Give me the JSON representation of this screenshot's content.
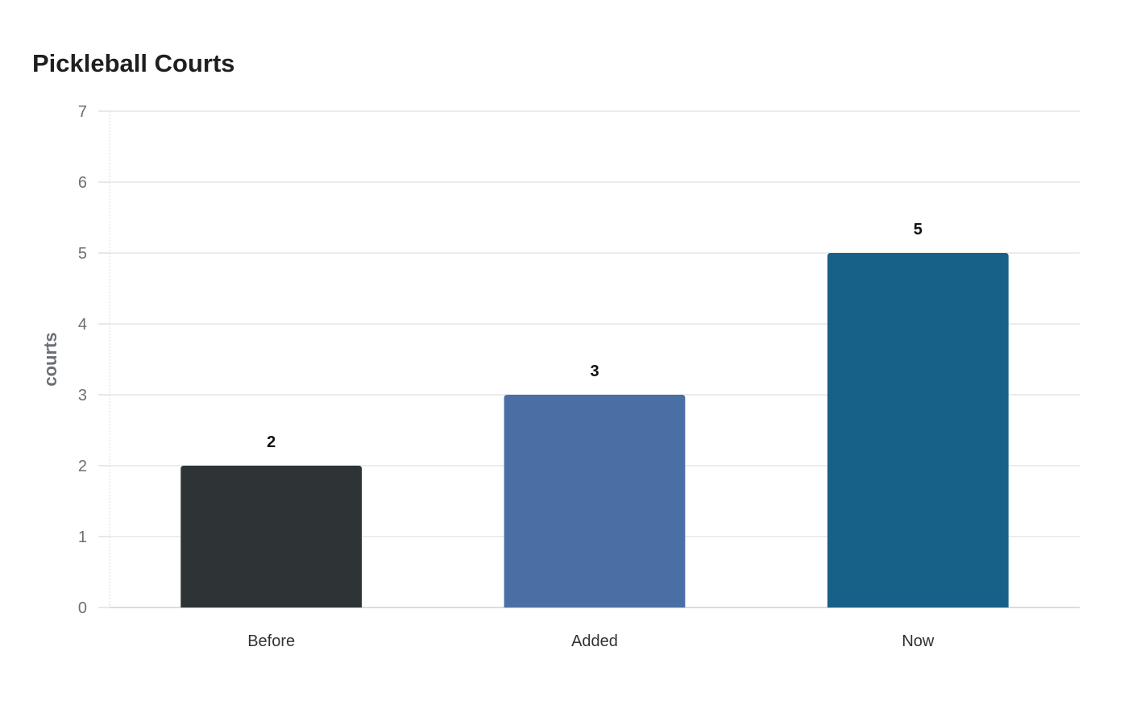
{
  "chart_data": {
    "type": "bar",
    "title": "Pickleball Courts",
    "xlabel": "",
    "ylabel": "courts",
    "categories": [
      "Before",
      "Added",
      "Now"
    ],
    "values": [
      2,
      3,
      5
    ],
    "bar_colors": [
      "#2e3436",
      "#4a6fa5",
      "#176087"
    ],
    "ylim": [
      0,
      7
    ],
    "yticks": [
      0,
      1,
      2,
      3,
      4,
      5,
      6,
      7
    ],
    "grid": true,
    "legend": "none",
    "data_labels": true
  }
}
